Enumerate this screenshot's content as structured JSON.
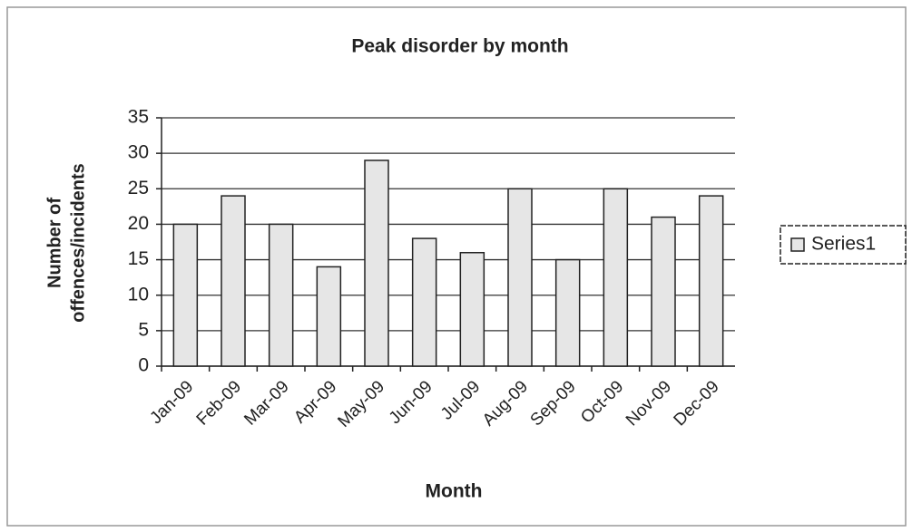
{
  "chart_data": {
    "type": "bar",
    "title": "Peak disorder by month",
    "xlabel": "Month",
    "ylabel": [
      "Number of",
      "offences/incidents"
    ],
    "categories": [
      "Jan-09",
      "Feb-09",
      "Mar-09",
      "Apr-09",
      "May-09",
      "Jun-09",
      "Jul-09",
      "Aug-09",
      "Sep-09",
      "Oct-09",
      "Nov-09",
      "Dec-09"
    ],
    "series": [
      {
        "name": "Series1",
        "color": "#e6e6e6",
        "values": [
          20,
          24,
          20,
          14,
          29,
          18,
          16,
          25,
          15,
          25,
          21,
          24
        ]
      }
    ],
    "ylim": [
      0,
      35
    ],
    "yticks": [
      0,
      5,
      10,
      15,
      20,
      25,
      30,
      35
    ],
    "grid": true,
    "legend": "right"
  }
}
